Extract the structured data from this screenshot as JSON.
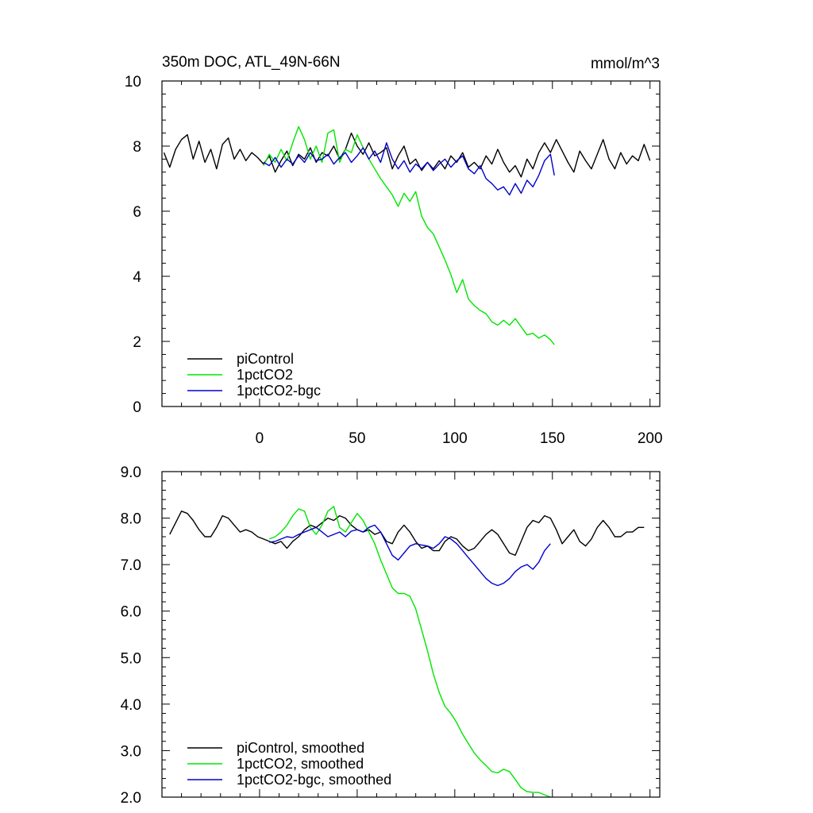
{
  "chart_data": [
    {
      "type": "line",
      "title": "350m DOC, ATL_49N-66N",
      "units": "mmol/m^3",
      "xlim": [
        -50,
        205
      ],
      "ylim": [
        0,
        10
      ],
      "xticks": [
        0,
        50,
        100,
        150,
        200
      ],
      "yticks": [
        0,
        2,
        4,
        6,
        8,
        10
      ],
      "ytick_labels": [
        "0",
        "2",
        "4",
        "6",
        "8",
        "10"
      ],
      "legend_position": "bottom-left",
      "series": [
        {
          "name": "piControl",
          "color": "#000000",
          "x": [
            -49,
            -46,
            -43,
            -40,
            -37,
            -34,
            -31,
            -28,
            -25,
            -22,
            -19,
            -16,
            -13,
            -10,
            -7,
            -4,
            -1,
            2,
            5,
            8,
            11,
            14,
            17,
            20,
            23,
            26,
            29,
            32,
            35,
            38,
            41,
            44,
            47,
            50,
            53,
            56,
            59,
            62,
            65,
            68,
            71,
            74,
            77,
            80,
            83,
            86,
            89,
            92,
            95,
            98,
            101,
            104,
            107,
            110,
            113,
            116,
            119,
            122,
            125,
            128,
            131,
            134,
            137,
            140,
            143,
            146,
            149,
            152,
            155,
            158,
            161,
            164,
            167,
            170,
            173,
            176,
            179,
            182,
            185,
            188,
            191,
            194,
            197,
            200
          ],
          "values": [
            7.8,
            7.35,
            7.9,
            8.2,
            8.35,
            7.6,
            8.15,
            7.5,
            7.9,
            7.3,
            8.05,
            8.25,
            7.6,
            7.9,
            7.55,
            7.8,
            7.65,
            7.45,
            7.7,
            7.2,
            7.55,
            7.85,
            7.4,
            7.75,
            7.6,
            7.95,
            7.5,
            7.8,
            7.7,
            8.0,
            7.6,
            7.9,
            8.4,
            8.0,
            7.75,
            8.1,
            7.7,
            7.8,
            7.95,
            7.3,
            7.7,
            8.0,
            7.45,
            7.6,
            7.25,
            7.5,
            7.3,
            7.55,
            7.3,
            7.7,
            7.5,
            7.8,
            7.35,
            7.5,
            7.3,
            7.7,
            7.45,
            7.9,
            7.5,
            7.2,
            7.4,
            7.05,
            7.6,
            7.3,
            7.8,
            8.1,
            7.8,
            8.2,
            7.85,
            7.5,
            7.2,
            7.85,
            7.55,
            7.3,
            7.75,
            8.2,
            7.6,
            7.3,
            7.8,
            7.45,
            7.7,
            7.55,
            8.05,
            7.55
          ]
        },
        {
          "name": "1pctCO2",
          "color": "#00e600",
          "x": [
            2,
            5,
            8,
            11,
            14,
            17,
            20,
            23,
            26,
            29,
            32,
            35,
            38,
            41,
            44,
            47,
            50,
            53,
            56,
            59,
            62,
            65,
            68,
            71,
            74,
            77,
            80,
            83,
            86,
            89,
            92,
            95,
            98,
            101,
            104,
            107,
            110,
            113,
            116,
            119,
            122,
            125,
            128,
            131,
            134,
            137,
            140,
            143,
            146,
            149,
            151
          ],
          "values": [
            7.4,
            7.75,
            7.5,
            7.9,
            7.55,
            8.1,
            8.6,
            8.2,
            7.6,
            8.0,
            7.5,
            8.4,
            8.5,
            7.5,
            7.9,
            7.8,
            8.35,
            7.95,
            7.6,
            7.3,
            7.0,
            6.75,
            6.5,
            6.15,
            6.55,
            6.3,
            6.6,
            5.85,
            5.5,
            5.3,
            4.9,
            4.5,
            4.05,
            3.5,
            3.9,
            3.3,
            3.1,
            2.95,
            2.85,
            2.6,
            2.5,
            2.65,
            2.5,
            2.7,
            2.45,
            2.2,
            2.25,
            2.1,
            2.2,
            2.05,
            1.9
          ]
        },
        {
          "name": "1pctCO2-bgc",
          "color": "#0000cc",
          "x": [
            2,
            5,
            8,
            11,
            14,
            17,
            20,
            23,
            26,
            29,
            32,
            35,
            38,
            41,
            44,
            47,
            50,
            53,
            56,
            59,
            62,
            65,
            68,
            71,
            74,
            77,
            80,
            83,
            86,
            89,
            92,
            95,
            98,
            101,
            104,
            107,
            110,
            113,
            116,
            119,
            122,
            125,
            128,
            131,
            134,
            137,
            140,
            143,
            146,
            149,
            151
          ],
          "values": [
            7.5,
            7.4,
            7.65,
            7.35,
            7.6,
            7.45,
            7.7,
            7.5,
            7.8,
            7.55,
            7.6,
            7.75,
            7.45,
            7.65,
            7.8,
            7.5,
            7.7,
            7.95,
            7.6,
            7.85,
            7.5,
            8.1,
            7.6,
            7.3,
            7.55,
            7.2,
            7.45,
            7.3,
            7.5,
            7.25,
            7.45,
            7.6,
            7.35,
            7.55,
            7.7,
            7.3,
            7.15,
            7.4,
            7.0,
            6.85,
            6.65,
            6.75,
            6.5,
            6.85,
            6.55,
            6.95,
            6.75,
            7.1,
            7.55,
            7.75,
            7.1
          ]
        }
      ]
    },
    {
      "type": "line",
      "xlim": [
        -50,
        205
      ],
      "ylim": [
        2.0,
        9.0
      ],
      "xticks": [
        0,
        50,
        100,
        150,
        200
      ],
      "yticks": [
        2.0,
        3.0,
        4.0,
        5.0,
        6.0,
        7.0,
        8.0,
        9.0
      ],
      "ytick_labels": [
        "2.0",
        "3.0",
        "4.0",
        "5.0",
        "6.0",
        "7.0",
        "8.0",
        "9.0"
      ],
      "legend_position": "bottom-left",
      "series": [
        {
          "name": "piControl, smoothed",
          "color": "#000000",
          "x": [
            -46,
            -43,
            -40,
            -37,
            -34,
            -31,
            -28,
            -25,
            -22,
            -19,
            -16,
            -13,
            -10,
            -7,
            -4,
            -1,
            2,
            5,
            8,
            11,
            14,
            17,
            20,
            23,
            26,
            29,
            32,
            35,
            38,
            41,
            44,
            47,
            50,
            53,
            56,
            59,
            62,
            65,
            68,
            71,
            74,
            77,
            80,
            83,
            86,
            89,
            92,
            95,
            98,
            101,
            104,
            107,
            110,
            113,
            116,
            119,
            122,
            125,
            128,
            131,
            134,
            137,
            140,
            143,
            146,
            149,
            152,
            155,
            158,
            161,
            164,
            167,
            170,
            173,
            176,
            179,
            182,
            185,
            188,
            191,
            194,
            197
          ],
          "values": [
            7.65,
            7.9,
            8.15,
            8.1,
            7.95,
            7.75,
            7.6,
            7.6,
            7.8,
            8.05,
            8.0,
            7.85,
            7.7,
            7.75,
            7.7,
            7.6,
            7.55,
            7.5,
            7.45,
            7.5,
            7.35,
            7.5,
            7.6,
            7.75,
            7.85,
            7.8,
            7.9,
            8.0,
            7.95,
            8.05,
            8.0,
            7.85,
            7.75,
            7.7,
            7.75,
            7.65,
            7.7,
            7.5,
            7.45,
            7.7,
            7.85,
            7.7,
            7.5,
            7.35,
            7.4,
            7.3,
            7.3,
            7.5,
            7.6,
            7.55,
            7.4,
            7.3,
            7.35,
            7.5,
            7.65,
            7.75,
            7.65,
            7.45,
            7.25,
            7.2,
            7.5,
            7.8,
            7.95,
            7.9,
            8.05,
            8.0,
            7.75,
            7.45,
            7.6,
            7.75,
            7.5,
            7.4,
            7.55,
            7.8,
            7.95,
            7.8,
            7.6,
            7.6,
            7.7,
            7.7,
            7.8,
            7.8
          ]
        },
        {
          "name": "1pctCO2, smoothed",
          "color": "#00e600",
          "x": [
            5,
            8,
            11,
            14,
            17,
            20,
            23,
            26,
            29,
            32,
            35,
            38,
            41,
            44,
            47,
            50,
            53,
            56,
            59,
            62,
            65,
            68,
            71,
            74,
            77,
            80,
            83,
            86,
            89,
            92,
            95,
            98,
            101,
            104,
            107,
            110,
            113,
            116,
            119,
            122,
            125,
            128,
            131,
            134,
            137,
            140,
            143,
            146,
            149
          ],
          "values": [
            7.55,
            7.6,
            7.7,
            7.85,
            8.05,
            8.2,
            8.15,
            7.8,
            7.65,
            7.85,
            8.15,
            8.25,
            7.8,
            7.7,
            7.9,
            8.1,
            7.95,
            7.7,
            7.45,
            7.1,
            6.8,
            6.5,
            6.38,
            6.38,
            6.32,
            6.05,
            5.6,
            5.15,
            4.65,
            4.25,
            3.95,
            3.8,
            3.6,
            3.35,
            3.15,
            2.95,
            2.8,
            2.68,
            2.55,
            2.52,
            2.6,
            2.55,
            2.38,
            2.2,
            2.12,
            2.1,
            2.1,
            2.05,
            2.0
          ]
        },
        {
          "name": "1pctCO2-bgc, smoothed",
          "color": "#0000cc",
          "x": [
            5,
            8,
            11,
            14,
            17,
            20,
            23,
            26,
            29,
            32,
            35,
            38,
            41,
            44,
            47,
            50,
            53,
            56,
            59,
            62,
            65,
            68,
            71,
            74,
            77,
            80,
            83,
            86,
            89,
            92,
            95,
            98,
            101,
            104,
            107,
            110,
            113,
            116,
            119,
            122,
            125,
            128,
            131,
            134,
            137,
            140,
            143,
            146,
            149
          ],
          "values": [
            7.48,
            7.5,
            7.55,
            7.6,
            7.58,
            7.65,
            7.7,
            7.75,
            7.8,
            7.7,
            7.6,
            7.65,
            7.7,
            7.6,
            7.72,
            7.75,
            7.7,
            7.8,
            7.85,
            7.7,
            7.45,
            7.2,
            7.1,
            7.25,
            7.4,
            7.45,
            7.42,
            7.4,
            7.35,
            7.45,
            7.6,
            7.55,
            7.45,
            7.3,
            7.15,
            7.0,
            6.85,
            6.7,
            6.6,
            6.55,
            6.6,
            6.7,
            6.85,
            6.95,
            7.0,
            6.9,
            7.05,
            7.3,
            7.45
          ]
        }
      ]
    }
  ]
}
